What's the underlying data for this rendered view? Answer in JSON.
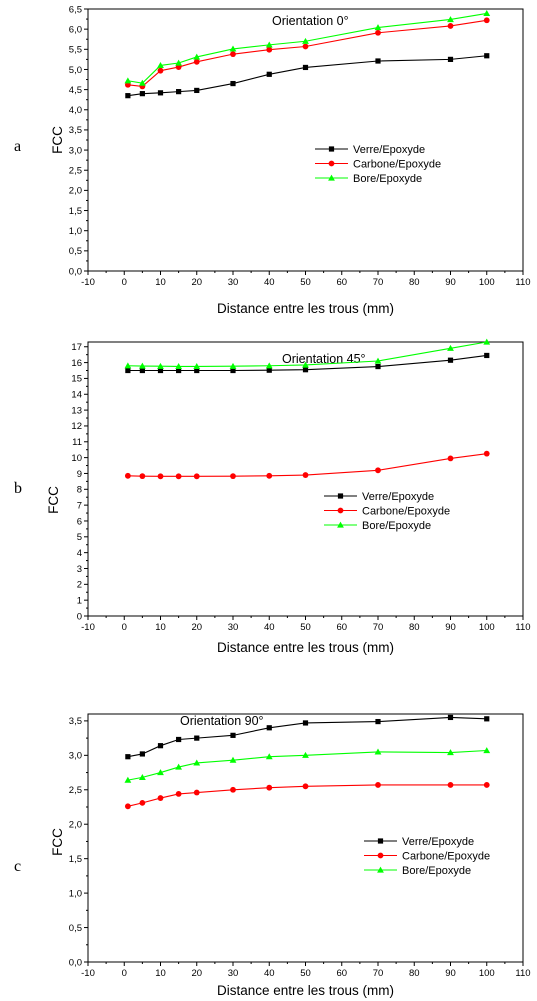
{
  "chart_data": [
    {
      "type": "line",
      "panel_letter": "a",
      "title": "Orientation 0°",
      "xlabel": "Distance entre les trous (mm)",
      "ylabel": "FCC",
      "xlim": [
        -10,
        110
      ],
      "ylim": [
        0,
        6.5
      ],
      "xticks": [
        "-10",
        "0",
        "10",
        "20",
        "30",
        "40",
        "50",
        "60",
        "70",
        "80",
        "90",
        "100",
        "110"
      ],
      "yticks": [
        "0,0",
        "0,5",
        "1,0",
        "1,5",
        "2,0",
        "2,5",
        "3,0",
        "3,5",
        "4,0",
        "4,5",
        "5,0",
        "5,5",
        "6,0",
        "6,5"
      ],
      "legend_position": "center-right",
      "x": [
        1,
        5,
        10,
        15,
        20,
        30,
        40,
        50,
        70,
        90,
        100
      ],
      "series": [
        {
          "name": "Verre/Epoxyde",
          "color": "#000000",
          "marker": "square",
          "values": [
            4.35,
            4.4,
            4.42,
            4.45,
            4.48,
            4.65,
            4.88,
            5.05,
            5.21,
            5.25,
            5.34
          ]
        },
        {
          "name": "Carbone/Epoxyde",
          "color": "#ff0000",
          "marker": "circle",
          "values": [
            4.62,
            4.58,
            4.97,
            5.06,
            5.19,
            5.38,
            5.49,
            5.57,
            5.91,
            6.08,
            6.22
          ]
        },
        {
          "name": "Bore/Epoxyde",
          "color": "#00ff00",
          "marker": "triangle",
          "values": [
            4.72,
            4.66,
            5.1,
            5.16,
            5.31,
            5.51,
            5.61,
            5.7,
            6.04,
            6.24,
            6.39
          ]
        }
      ]
    },
    {
      "type": "line",
      "panel_letter": "b",
      "title": "Orientation 45°",
      "xlabel": "Distance entre les trous (mm)",
      "ylabel": "FCC",
      "xlim": [
        -10,
        110
      ],
      "ylim": [
        0,
        17.3
      ],
      "xticks": [
        "-10",
        "0",
        "10",
        "20",
        "30",
        "40",
        "50",
        "60",
        "70",
        "80",
        "90",
        "100",
        "110"
      ],
      "yticks": [
        "0",
        "1",
        "2",
        "3",
        "4",
        "5",
        "6",
        "7",
        "8",
        "9",
        "10",
        "11",
        "12",
        "13",
        "14",
        "15",
        "16",
        "17"
      ],
      "legend_position": "center-right",
      "x": [
        1,
        5,
        10,
        15,
        20,
        30,
        40,
        50,
        70,
        90,
        100
      ],
      "series": [
        {
          "name": "Verre/Epoxyde",
          "color": "#000000",
          "marker": "square",
          "values": [
            15.5,
            15.5,
            15.5,
            15.5,
            15.5,
            15.5,
            15.52,
            15.55,
            15.75,
            16.15,
            16.45
          ]
        },
        {
          "name": "Carbone/Epoxyde",
          "color": "#ff0000",
          "marker": "circle",
          "values": [
            8.85,
            8.83,
            8.82,
            8.82,
            8.82,
            8.83,
            8.85,
            8.9,
            9.2,
            9.95,
            10.25
          ]
        },
        {
          "name": "Bore/Epoxyde",
          "color": "#00ff00",
          "marker": "triangle",
          "values": [
            15.8,
            15.78,
            15.77,
            15.76,
            15.76,
            15.77,
            15.8,
            15.85,
            16.1,
            16.9,
            17.3
          ]
        }
      ]
    },
    {
      "type": "line",
      "panel_letter": "c",
      "title": "Orientation 90°",
      "xlabel": "Distance entre les trous (mm)",
      "ylabel": "FCC",
      "xlim": [
        -10,
        110
      ],
      "ylim": [
        0,
        3.6
      ],
      "xticks": [
        "-10",
        "0",
        "10",
        "20",
        "30",
        "40",
        "50",
        "60",
        "70",
        "80",
        "90",
        "100",
        "110"
      ],
      "yticks": [
        "0,0",
        "0,5",
        "1,0",
        "1,5",
        "2,0",
        "2,5",
        "3,0",
        "3,5"
      ],
      "legend_position": "center-right",
      "x": [
        1,
        5,
        10,
        15,
        20,
        30,
        40,
        50,
        70,
        90,
        100
      ],
      "series": [
        {
          "name": "Verre/Epoxyde",
          "color": "#000000",
          "marker": "square",
          "values": [
            2.98,
            3.02,
            3.14,
            3.23,
            3.25,
            3.29,
            3.4,
            3.47,
            3.49,
            3.55,
            3.53
          ]
        },
        {
          "name": "Carbone/Epoxyde",
          "color": "#ff0000",
          "marker": "circle",
          "values": [
            2.26,
            2.31,
            2.38,
            2.44,
            2.46,
            2.5,
            2.53,
            2.55,
            2.57,
            2.57,
            2.57
          ]
        },
        {
          "name": "Bore/Epoxyde",
          "color": "#00ff00",
          "marker": "triangle",
          "values": [
            2.64,
            2.68,
            2.75,
            2.83,
            2.89,
            2.93,
            2.98,
            3.0,
            3.05,
            3.04,
            3.07
          ]
        }
      ]
    }
  ]
}
